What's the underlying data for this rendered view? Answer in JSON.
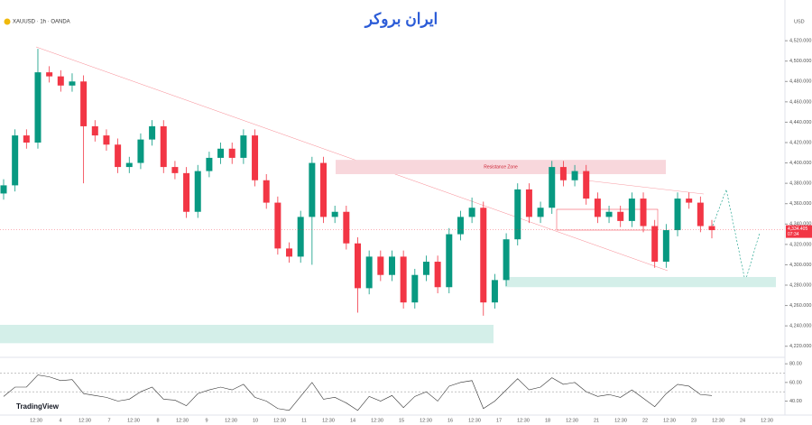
{
  "chart_data": {
    "type": "candlestick",
    "symbol": "XAUUSD · 1h · OANDA",
    "currency": "USD",
    "brand": "TradingView",
    "logo": "ایران بروکر",
    "up_color": "#089981",
    "down_color": "#f23645",
    "grid": false,
    "ylim": [
      4210,
      4560
    ],
    "yticks": [
      {
        "value": 4220,
        "label": "4,220.000"
      },
      {
        "value": 4240,
        "label": "4,240.000"
      },
      {
        "value": 4260,
        "label": "4,260.000"
      },
      {
        "value": 4280,
        "label": "4,280.000"
      },
      {
        "value": 4300,
        "label": "4,300.000"
      },
      {
        "value": 4320,
        "label": "4,320.000"
      },
      {
        "value": 4340,
        "label": "4,340.000"
      },
      {
        "value": 4360,
        "label": "4,360.000"
      },
      {
        "value": 4380,
        "label": "4,380.000"
      },
      {
        "value": 4400,
        "label": "4,400.000"
      },
      {
        "value": 4420,
        "label": "4,420.000"
      },
      {
        "value": 4440,
        "label": "4,440.000"
      },
      {
        "value": 4460,
        "label": "4,460.000"
      },
      {
        "value": 4480,
        "label": "4,480.000"
      },
      {
        "value": 4500,
        "label": "4,500.000"
      },
      {
        "value": 4520,
        "label": "4,520.000"
      }
    ],
    "xticks": [
      "12:30",
      "4",
      "12:30",
      "7",
      "12:30",
      "8",
      "12:30",
      "9",
      "12:30",
      "10",
      "12:30",
      "11",
      "12:30",
      "14",
      "12:30",
      "15",
      "12:30",
      "16",
      "12:30",
      "17",
      "12:30",
      "18",
      "12:30",
      "21",
      "12:30",
      "22",
      "12:30",
      "23",
      "12:30",
      "24",
      "12:30"
    ],
    "open": [
      4370,
      4378,
      4427,
      4420,
      4489,
      4485,
      4476,
      4480,
      4436,
      4427,
      4418,
      4396,
      4400,
      4423,
      4436,
      4396,
      4390,
      4352,
      4392,
      4405,
      4414,
      4405,
      4427,
      4383,
      4361,
      4316,
      4308,
      4347,
      4400,
      4347,
      4352,
      4321,
      4277,
      4308,
      4290,
      4308,
      4263,
      4290,
      4303,
      4278,
      4330,
      4347,
      4356,
      4263,
      4285,
      4325,
      4374,
      4347,
      4356,
      4396,
      4383,
      4392,
      4365,
      4347,
      4352,
      4343,
      4365,
      4338,
      4303,
      4334,
      4365,
      4361,
      4338
    ],
    "high": [
      4384,
      4433,
      4433,
      4512,
      4495,
      4491,
      4488,
      4486,
      4442,
      4433,
      4424,
      4406,
      4429,
      4442,
      4442,
      4402,
      4396,
      4398,
      4411,
      4420,
      4420,
      4433,
      4433,
      4389,
      4367,
      4322,
      4353,
      4406,
      4406,
      4358,
      4358,
      4327,
      4314,
      4314,
      4314,
      4314,
      4296,
      4309,
      4309,
      4336,
      4353,
      4366,
      4362,
      4291,
      4331,
      4380,
      4380,
      4362,
      4402,
      4402,
      4398,
      4398,
      4371,
      4358,
      4358,
      4371,
      4371,
      4344,
      4340,
      4371,
      4371,
      4367,
      4344
    ],
    "low": [
      4364,
      4372,
      4414,
      4414,
      4479,
      4470,
      4470,
      4380,
      4421,
      4412,
      4390,
      4390,
      4394,
      4417,
      4390,
      4384,
      4346,
      4346,
      4386,
      4399,
      4399,
      4399,
      4377,
      4355,
      4310,
      4302,
      4302,
      4300,
      4341,
      4341,
      4315,
      4253,
      4271,
      4284,
      4284,
      4257,
      4257,
      4284,
      4272,
      4272,
      4324,
      4341,
      4250,
      4257,
      4279,
      4319,
      4341,
      4341,
      4350,
      4377,
      4377,
      4359,
      4341,
      4341,
      4337,
      4337,
      4332,
      4297,
      4297,
      4328,
      4355,
      4332,
      4326
    ],
    "close": [
      4378,
      4427,
      4420,
      4489,
      4485,
      4476,
      4480,
      4436,
      4427,
      4418,
      4396,
      4400,
      4423,
      4436,
      4396,
      4390,
      4352,
      4392,
      4405,
      4414,
      4405,
      4427,
      4383,
      4361,
      4316,
      4308,
      4347,
      4400,
      4347,
      4352,
      4321,
      4277,
      4308,
      4290,
      4308,
      4263,
      4290,
      4303,
      4278,
      4330,
      4347,
      4356,
      4263,
      4285,
      4325,
      4374,
      4347,
      4356,
      4396,
      4383,
      4392,
      4365,
      4347,
      4352,
      4343,
      4365,
      4338,
      4303,
      4334,
      4365,
      4361,
      4338,
      4334
    ],
    "last_price": 4334.405,
    "last_price_label": "4,334.405",
    "countdown": "07:34",
    "zones": [
      {
        "label": "Resistance Zone",
        "top": 4403,
        "bottom": 4389,
        "color": "#f8d7dc"
      },
      {
        "top": 4288,
        "bottom": 4278,
        "color": "#d4efe9"
      },
      {
        "top": 4241,
        "bottom": 4223,
        "color": "#d4efe9"
      }
    ],
    "rsi": {
      "ylim": [
        25,
        85
      ],
      "yticks": [
        {
          "value": 80,
          "label": "80.00"
        },
        {
          "value": 60,
          "label": "60.00"
        },
        {
          "value": 40,
          "label": "40.00"
        }
      ],
      "levels": [
        70,
        50
      ],
      "values": [
        45,
        55,
        55,
        68,
        66,
        62,
        63,
        48,
        46,
        44,
        40,
        42,
        50,
        55,
        42,
        41,
        35,
        48,
        52,
        55,
        52,
        58,
        44,
        40,
        32,
        30,
        45,
        60,
        42,
        44,
        38,
        30,
        45,
        40,
        46,
        33,
        45,
        50,
        40,
        56,
        60,
        62,
        32,
        40,
        52,
        64,
        52,
        55,
        65,
        58,
        60,
        50,
        45,
        47,
        44,
        52,
        43,
        34,
        48,
        58,
        56,
        47,
        46
      ]
    }
  }
}
